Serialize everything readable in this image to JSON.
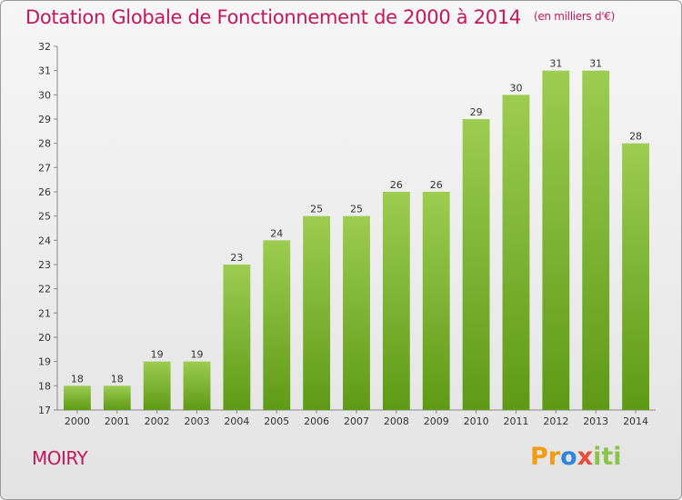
{
  "title": "Dotation Globale de Fonctionnement de 2000 à 2014",
  "subtitle": "(en milliers d'€)",
  "location": "MOIRY",
  "logo": {
    "p1": "Pr",
    "p2": "o",
    "p3": "x",
    "p4": "iti"
  },
  "colors": {
    "accent": "#c2185b",
    "bar_top": "#9ccc50",
    "bar_bottom": "#5e9a15"
  },
  "chart_data": {
    "type": "bar",
    "categories": [
      "2000",
      "2001",
      "2002",
      "2003",
      "2004",
      "2005",
      "2006",
      "2007",
      "2008",
      "2009",
      "2010",
      "2011",
      "2012",
      "2013",
      "2014"
    ],
    "values": [
      18,
      18,
      19,
      19,
      23,
      24,
      25,
      25,
      26,
      26,
      29,
      30,
      31,
      31,
      28
    ],
    "ylim": [
      17,
      32
    ],
    "yticks": [
      17,
      18,
      19,
      20,
      21,
      22,
      23,
      24,
      25,
      26,
      27,
      28,
      29,
      30,
      31,
      32
    ],
    "grid": false,
    "data_labels": true
  }
}
